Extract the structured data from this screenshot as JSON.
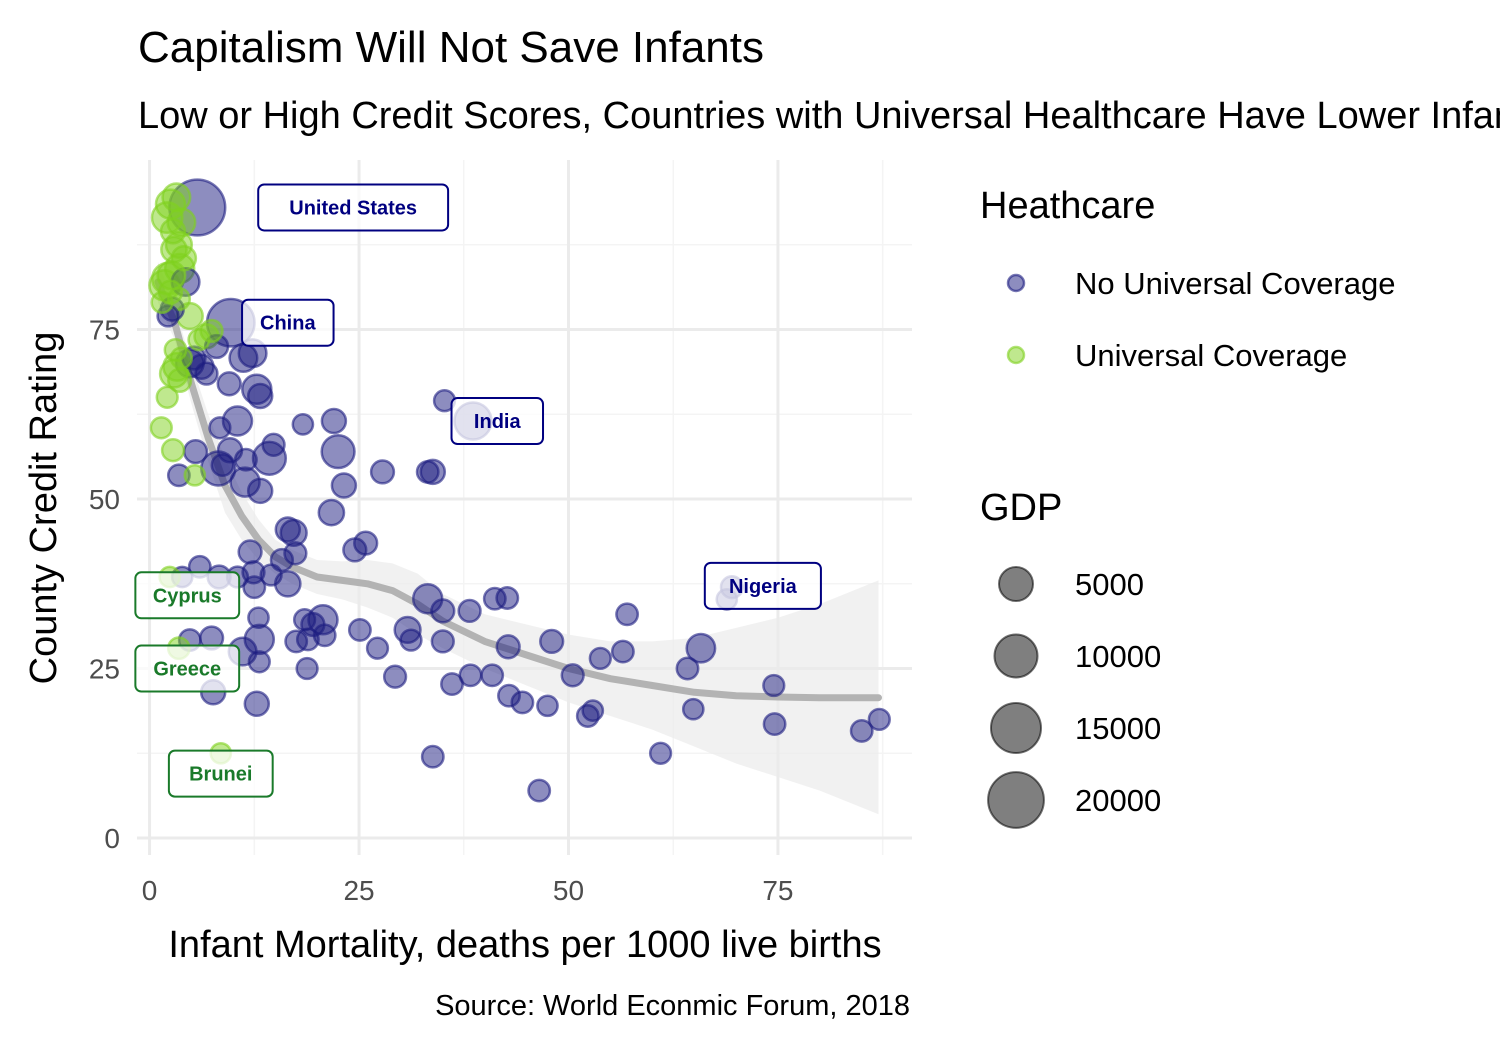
{
  "chart_data": {
    "type": "scatter",
    "title": "Capitalism Will Not Save Infants",
    "subtitle": "Low or High Credit Scores, Countries with Universal Healthcare Have Lower Infant Mortality",
    "xlabel": "Infant Mortality, deaths per 1000 live births",
    "ylabel": "County Credit Rating",
    "caption": "Source: World Econmic Forum, 2018",
    "xlim": [
      -1.5,
      91
    ],
    "ylim": [
      -2.5,
      100
    ],
    "x_ticks": [
      0,
      25,
      50,
      75
    ],
    "y_ticks": [
      0,
      25,
      50,
      75
    ],
    "grid": true,
    "colors": {
      "no_universal": "#1c1c80",
      "universal": "#7fd11e",
      "trend": "#b3b3b3",
      "band": "#ebebeb",
      "grid_major": "#ebebeb",
      "grid_minor": "#f4f4f4",
      "callout_no_universal": "#000080",
      "callout_universal": "#1a7a2a"
    },
    "legend": {
      "placement": "right",
      "color_title": "Heathcare",
      "color_items": [
        {
          "label": "No Universal Coverage",
          "group": "no_universal"
        },
        {
          "label": "Universal Coverage",
          "group": "universal"
        }
      ],
      "size_title": "GDP",
      "size_items": [
        5000,
        10000,
        15000,
        20000
      ]
    },
    "series": [
      {
        "name": "No Universal Coverage",
        "group": "no_universal",
        "points": [
          [
            5.7,
            93,
            20000
          ],
          [
            9.7,
            76,
            13000
          ],
          [
            38.6,
            61.5,
            6500
          ],
          [
            69.5,
            37,
            1000
          ],
          [
            4.3,
            82,
            2500
          ],
          [
            2.7,
            78,
            1200
          ],
          [
            2.2,
            77,
            800
          ],
          [
            8,
            72.5,
            1200
          ],
          [
            4.8,
            70,
            2500
          ],
          [
            5.3,
            70.8,
            1200
          ],
          [
            6.2,
            69.5,
            1500
          ],
          [
            6.8,
            68.5,
            1000
          ],
          [
            11.2,
            70.8,
            2500
          ],
          [
            12.3,
            71.5,
            2500
          ],
          [
            9.5,
            67,
            1200
          ],
          [
            12.8,
            66.2,
            3000
          ],
          [
            13.2,
            65.2,
            1500
          ],
          [
            10.5,
            61.5,
            3000
          ],
          [
            8.4,
            60.5,
            800
          ],
          [
            5.5,
            57,
            1200
          ],
          [
            9.6,
            57.2,
            1500
          ],
          [
            11.5,
            55.8,
            900
          ],
          [
            14.3,
            56,
            4500
          ],
          [
            14.8,
            58,
            1000
          ],
          [
            8.2,
            54.5,
            5000
          ],
          [
            8.7,
            55,
            900
          ],
          [
            11.4,
            52.5,
            3000
          ],
          [
            13.2,
            51.2,
            1500
          ],
          [
            3.5,
            53.5,
            900
          ],
          [
            18.3,
            61,
            700
          ],
          [
            22,
            61.5,
            1500
          ],
          [
            22.5,
            57,
            4500
          ],
          [
            23.2,
            52,
            1500
          ],
          [
            27.8,
            54,
            1200
          ],
          [
            33.2,
            54,
            900
          ],
          [
            33.8,
            54,
            1500
          ],
          [
            35.2,
            64.5,
            800
          ],
          [
            16.5,
            45.5,
            1500
          ],
          [
            17.2,
            45,
            2000
          ],
          [
            21.7,
            48,
            1800
          ],
          [
            12,
            42.2,
            1200
          ],
          [
            17.4,
            42,
            1000
          ],
          [
            15.8,
            41,
            1000
          ],
          [
            24.5,
            42.5,
            1200
          ],
          [
            25.8,
            43.5,
            1200
          ],
          [
            6,
            40,
            900
          ],
          [
            3.9,
            38.5,
            700
          ],
          [
            8.3,
            38.5,
            1200
          ],
          [
            10.5,
            38.5,
            800
          ],
          [
            12.4,
            39.2,
            1000
          ],
          [
            14.5,
            38.8,
            800
          ],
          [
            16.5,
            37.5,
            1800
          ],
          [
            12.5,
            37,
            900
          ],
          [
            33.2,
            35.3,
            3000
          ],
          [
            35,
            33.5,
            1200
          ],
          [
            38.2,
            33.5,
            1000
          ],
          [
            41.2,
            35.3,
            900
          ],
          [
            42.7,
            35.4,
            900
          ],
          [
            57,
            33,
            900
          ],
          [
            68.9,
            35.2,
            700
          ],
          [
            18.5,
            32.2,
            800
          ],
          [
            19.5,
            31.5,
            1200
          ],
          [
            20.7,
            32.2,
            3000
          ],
          [
            13,
            32.5,
            700
          ],
          [
            25.1,
            30.7,
            900
          ],
          [
            30.8,
            30.7,
            2000
          ],
          [
            35,
            29,
            1000
          ],
          [
            31.2,
            29.2,
            800
          ],
          [
            4.8,
            29.2,
            900
          ],
          [
            7.4,
            29.5,
            1200
          ],
          [
            13.1,
            29.3,
            3000
          ],
          [
            17.5,
            29,
            900
          ],
          [
            18.9,
            29.3,
            900
          ],
          [
            20.9,
            29.9,
            900
          ],
          [
            27.2,
            28,
            800
          ],
          [
            42.8,
            28.2,
            1200
          ],
          [
            48,
            29,
            1200
          ],
          [
            11.1,
            27.5,
            2500
          ],
          [
            13.1,
            26,
            800
          ],
          [
            53.8,
            26.5,
            800
          ],
          [
            56.5,
            27.5,
            900
          ],
          [
            65.8,
            28,
            2800
          ],
          [
            64.2,
            25,
            900
          ],
          [
            18.8,
            25,
            800
          ],
          [
            29.3,
            23.8,
            1000
          ],
          [
            36.1,
            22.7,
            900
          ],
          [
            38.3,
            24,
            900
          ],
          [
            40.9,
            24,
            900
          ],
          [
            50.5,
            24,
            1000
          ],
          [
            7.6,
            21.5,
            1500
          ],
          [
            42.9,
            21,
            900
          ],
          [
            44.5,
            20,
            900
          ],
          [
            47.5,
            19.5,
            700
          ],
          [
            52.9,
            18.8,
            700
          ],
          [
            52.3,
            18,
            900
          ],
          [
            64.9,
            19,
            700
          ],
          [
            74.5,
            22.5,
            800
          ],
          [
            12.8,
            19.8,
            1500
          ],
          [
            74.6,
            16.8,
            900
          ],
          [
            85,
            15.8,
            900
          ],
          [
            87.1,
            17.5,
            800
          ],
          [
            33.8,
            12,
            900
          ],
          [
            61,
            12.5,
            800
          ],
          [
            46.5,
            7,
            900
          ]
        ]
      },
      {
        "name": "Universal Coverage",
        "group": "universal",
        "points": [
          [
            2.5,
            93.5,
            3000
          ],
          [
            3.2,
            94.5,
            2500
          ],
          [
            2.1,
            91.5,
            3500
          ],
          [
            3.8,
            90.8,
            2500
          ],
          [
            2.8,
            89.5,
            1500
          ],
          [
            3.5,
            87.5,
            2000
          ],
          [
            2.9,
            86.8,
            1800
          ],
          [
            3.6,
            84,
            3000
          ],
          [
            2.6,
            83,
            2500
          ],
          [
            2.2,
            82.5,
            4000
          ],
          [
            1.8,
            81.5,
            3500
          ],
          [
            4.1,
            85.5,
            1500
          ],
          [
            1.5,
            79,
            800
          ],
          [
            2.5,
            80.5,
            1200
          ],
          [
            3.5,
            79.5,
            1000
          ],
          [
            4.8,
            77,
            2000
          ],
          [
            6.8,
            74,
            1500
          ],
          [
            7.4,
            74.8,
            1000
          ],
          [
            5.9,
            73.5,
            800
          ],
          [
            3.1,
            72,
            900
          ],
          [
            3.8,
            70.8,
            800
          ],
          [
            3.3,
            69.5,
            2500
          ],
          [
            2.9,
            68.5,
            2500
          ],
          [
            3.6,
            67.5,
            1200
          ],
          [
            2.1,
            65,
            800
          ],
          [
            1.4,
            60.5,
            800
          ],
          [
            2.8,
            57.2,
            1000
          ],
          [
            5.4,
            53.5,
            700
          ],
          [
            2.4,
            38.5,
            700
          ],
          [
            3.5,
            28,
            900
          ],
          [
            8.5,
            12.5,
            700
          ]
        ]
      }
    ],
    "trend_line": {
      "x": [
        1,
        3,
        5,
        7,
        9,
        11,
        13,
        15,
        17,
        20,
        23,
        26,
        29,
        32,
        35,
        40,
        45,
        50,
        55,
        60,
        65,
        70,
        75,
        80,
        87
      ],
      "y": [
        82,
        76,
        67,
        59,
        52,
        47.5,
        44,
        41.5,
        40,
        38.5,
        38,
        37.5,
        36.5,
        34.5,
        32,
        29,
        27,
        25,
        23.5,
        22.5,
        21.5,
        21,
        20.8,
        20.7,
        20.7
      ],
      "ci_lower": [
        79,
        73.5,
        64,
        55.5,
        48,
        44,
        41,
        39,
        37.5,
        36,
        35.2,
        34,
        32.5,
        30,
        28,
        25,
        22.5,
        20,
        18,
        16,
        13.5,
        11,
        9,
        7,
        3.5
      ],
      "ci_upper": [
        85,
        78.5,
        70,
        62.5,
        56,
        51,
        47,
        44,
        42.5,
        41,
        40.8,
        41,
        40.5,
        39,
        36,
        33,
        31.5,
        30,
        29,
        29,
        29.5,
        31,
        32.5,
        34.5,
        38
      ]
    },
    "callouts": [
      {
        "label": "United States",
        "x": 24.3,
        "y": 93,
        "group": "no_universal"
      },
      {
        "label": "China",
        "x": 16.5,
        "y": 76,
        "group": "no_universal"
      },
      {
        "label": "India",
        "x": 41.5,
        "y": 61.5,
        "group": "no_universal"
      },
      {
        "label": "Nigeria",
        "x": 73.2,
        "y": 37.2,
        "group": "no_universal"
      },
      {
        "label": "Cyprus",
        "x": 4.5,
        "y": 35.8,
        "group": "universal"
      },
      {
        "label": "Greece",
        "x": 4.5,
        "y": 25,
        "group": "universal"
      },
      {
        "label": "Brunei",
        "x": 8.5,
        "y": 9.5,
        "group": "universal"
      }
    ]
  }
}
